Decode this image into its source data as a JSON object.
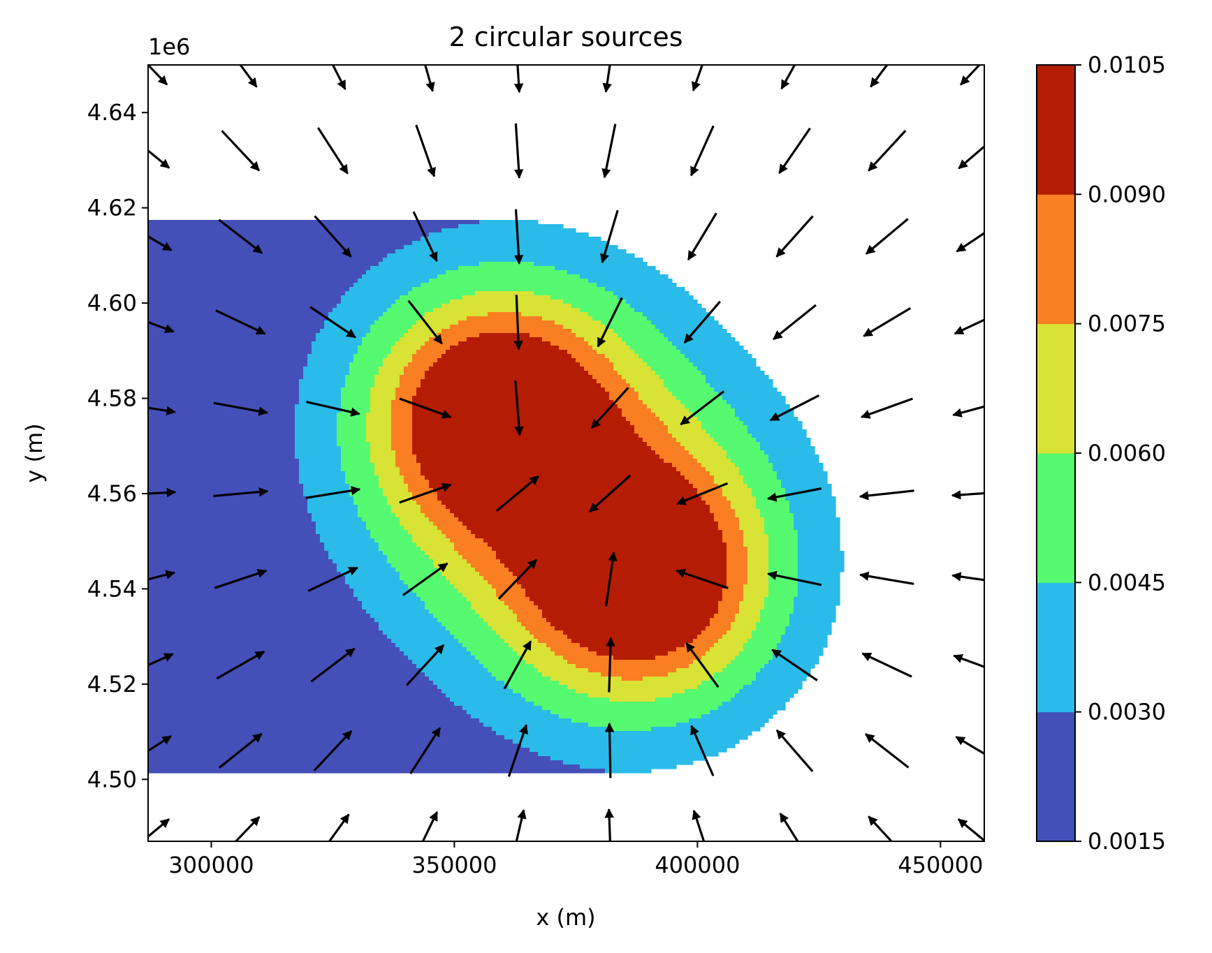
{
  "chart_data": {
    "type": "contour",
    "title": "2 circular sources",
    "xlabel": "x (m)",
    "ylabel": "y (m)",
    "y_offset_label": "1e6",
    "xlim": [
      287000,
      459000
    ],
    "ylim": [
      4487000,
      4650000
    ],
    "x_ticks": [
      300000,
      350000,
      400000,
      450000
    ],
    "x_tick_labels": [
      "300000",
      "350000",
      "400000",
      "450000"
    ],
    "y_ticks": [
      4500000,
      4520000,
      4540000,
      4560000,
      4580000,
      4600000,
      4620000,
      4640000
    ],
    "y_tick_labels": [
      "4.50",
      "4.52",
      "4.54",
      "4.56",
      "4.58",
      "4.60",
      "4.62",
      "4.64"
    ],
    "sources": [
      {
        "x": 359000,
        "y": 4576000,
        "radius": 20000
      },
      {
        "x": 388000,
        "y": 4543000,
        "radius": 20000
      }
    ],
    "contour_levels": [
      0.0015,
      0.003,
      0.0045,
      0.006,
      0.0075,
      0.009,
      0.0105
    ],
    "contour_colors": [
      "#4450b8",
      "#2abbe9",
      "#56fa70",
      "#d8e335",
      "#fa7e22",
      "#b41c03"
    ],
    "colorbar": {
      "ticks": [
        0.0015,
        0.003,
        0.0045,
        0.006,
        0.0075,
        0.009,
        0.0105
      ],
      "tick_labels": [
        "0.0015",
        "0.0030",
        "0.0045",
        "0.0060",
        "0.0075",
        "0.0090",
        "0.0105"
      ]
    },
    "vector_grid": {
      "x": [
        287000,
        306000,
        325000,
        344000,
        363000,
        382000,
        401000,
        420000,
        439000,
        458000
      ],
      "y": [
        4650000,
        4632000,
        4614000,
        4596000,
        4578000,
        4560000,
        4542000,
        4524000,
        4506000,
        4488000
      ],
      "arrow_color": "#000000"
    }
  }
}
